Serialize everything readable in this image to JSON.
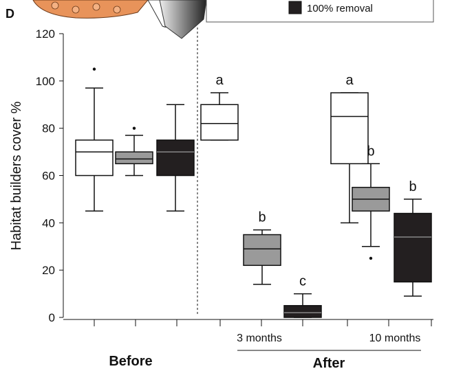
{
  "chart_data": {
    "type": "box",
    "panel_label": "D",
    "y_label": "Habitat builders cover %",
    "ylim": [
      0,
      120
    ],
    "yticks": [
      0,
      20,
      40,
      60,
      80,
      100,
      120
    ],
    "legend": [
      {
        "name": "100% removal",
        "color": "#231f20"
      }
    ],
    "period_labels": [
      "Before",
      "After"
    ],
    "time_labels": [
      "3 months",
      "10 months"
    ],
    "boxes": [
      {
        "color": "#ffffff",
        "whisker_low": 45,
        "q1": 60,
        "median": 70,
        "q3": 75,
        "whisker_high": 97,
        "outliers": [
          105
        ]
      },
      {
        "color": "#9a9a9a",
        "whisker_low": 60,
        "q1": 65,
        "median": 67,
        "q3": 70,
        "whisker_high": 77,
        "outliers": [
          80
        ]
      },
      {
        "color": "#231f20",
        "whisker_low": 45,
        "q1": 60,
        "median": 70,
        "q3": 75,
        "whisker_high": 90,
        "outliers": []
      },
      {
        "color": "#ffffff",
        "whisker_low": 75,
        "q1": 75,
        "median": 82,
        "q3": 90,
        "whisker_high": 95,
        "outliers": [],
        "letter": "a"
      },
      {
        "color": "#9a9a9a",
        "whisker_low": 14,
        "q1": 22,
        "median": 29,
        "q3": 35,
        "whisker_high": 37,
        "outliers": [],
        "letter": "b"
      },
      {
        "color": "#231f20",
        "whisker_low": 0,
        "q1": 0,
        "median": 2,
        "q3": 5,
        "whisker_high": 10,
        "outliers": [],
        "letter": "c"
      },
      {
        "color": "#ffffff",
        "whisker_low": 40,
        "q1": 65,
        "median": 85,
        "q3": 95,
        "whisker_high": 95,
        "outliers": [],
        "letter": "a"
      },
      {
        "color": "#9a9a9a",
        "whisker_low": 30,
        "q1": 45,
        "median": 50,
        "q3": 55,
        "whisker_high": 65,
        "outliers": [
          25
        ],
        "letter": "b"
      },
      {
        "color": "#231f20",
        "whisker_low": 9,
        "q1": 15,
        "median": 34,
        "q3": 44,
        "whisker_high": 50,
        "outliers": [],
        "letter": "b"
      }
    ]
  }
}
